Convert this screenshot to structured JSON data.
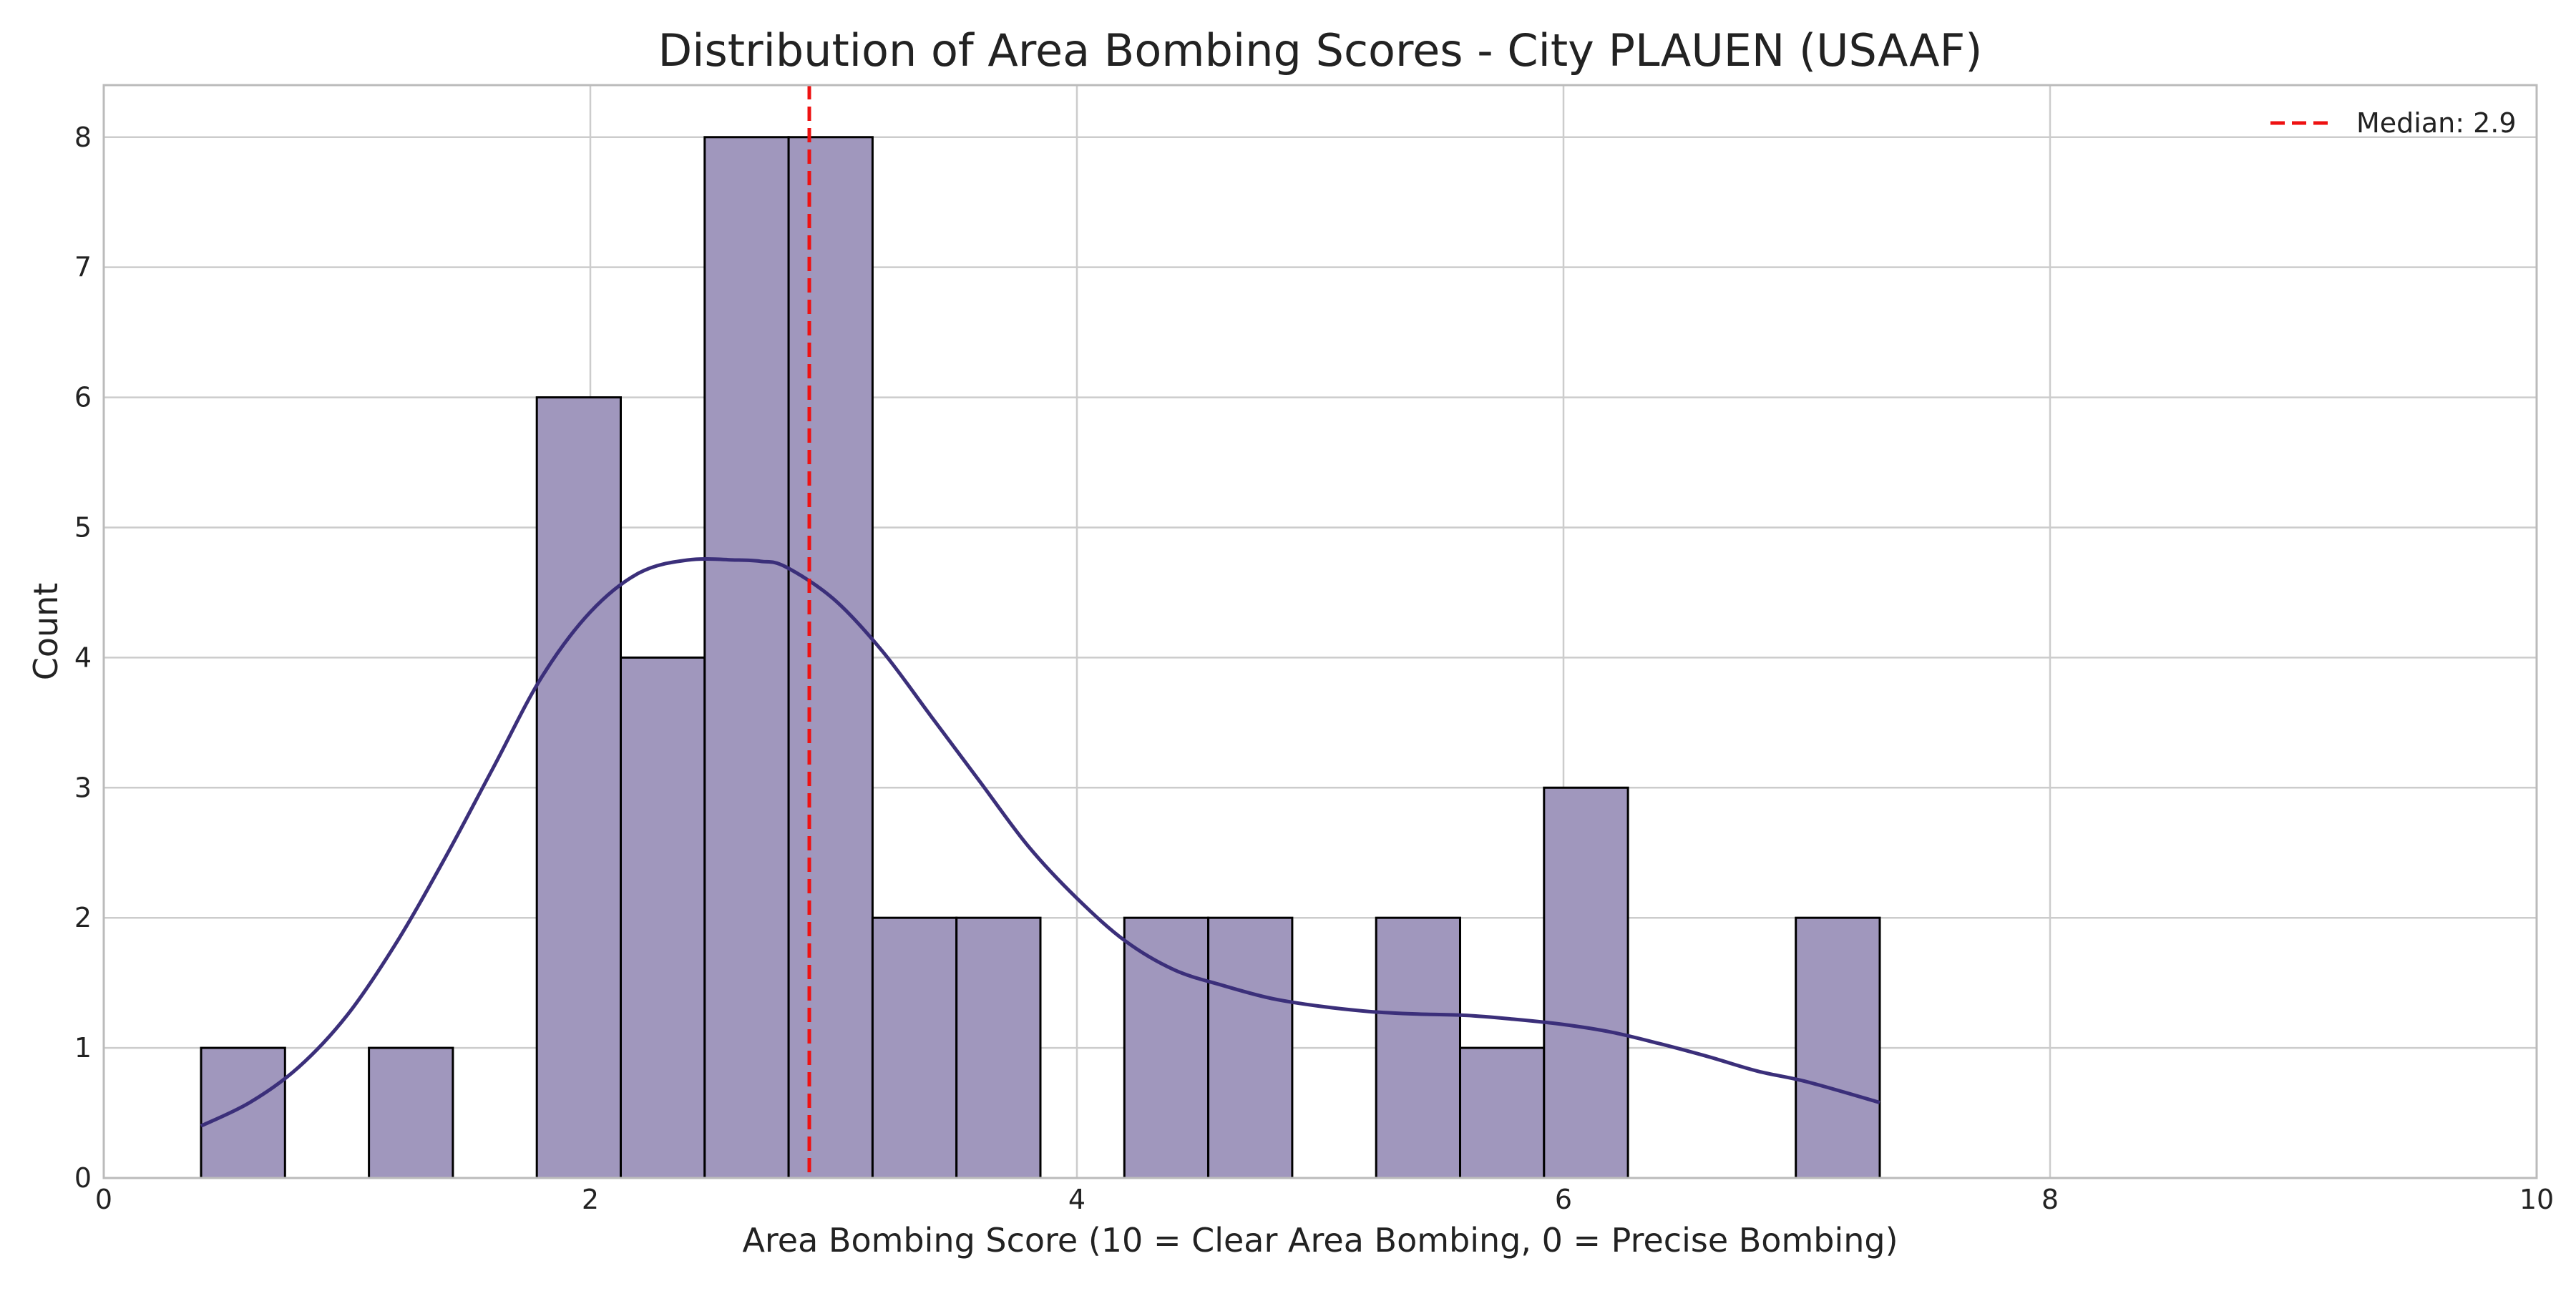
{
  "chart_data": {
    "type": "bar",
    "title": "Distribution of Area Bombing Scores - City PLAUEN (USAAF)",
    "xlabel": "Area Bombing Score (10 = Clear Area Bombing, 0 = Precise Bombing)",
    "ylabel": "Count",
    "xlim": [
      0,
      10
    ],
    "ylim": [
      0,
      8.4
    ],
    "xticks": [
      0,
      2,
      4,
      6,
      8,
      10
    ],
    "yticks": [
      0,
      1,
      2,
      3,
      4,
      5,
      6,
      7,
      8
    ],
    "grid": true,
    "legend_position": "top-right",
    "bins": [
      {
        "x0": 0.4,
        "x1": 0.745,
        "count": 1
      },
      {
        "x0": 0.745,
        "x1": 1.09,
        "count": 0
      },
      {
        "x0": 1.09,
        "x1": 1.435,
        "count": 1
      },
      {
        "x0": 1.435,
        "x1": 1.78,
        "count": 0
      },
      {
        "x0": 1.78,
        "x1": 2.125,
        "count": 6
      },
      {
        "x0": 2.125,
        "x1": 2.47,
        "count": 4
      },
      {
        "x0": 2.47,
        "x1": 2.815,
        "count": 8
      },
      {
        "x0": 2.815,
        "x1": 3.16,
        "count": 8
      },
      {
        "x0": 3.16,
        "x1": 3.505,
        "count": 2
      },
      {
        "x0": 3.505,
        "x1": 3.85,
        "count": 2
      },
      {
        "x0": 3.85,
        "x1": 4.195,
        "count": 0
      },
      {
        "x0": 4.195,
        "x1": 4.54,
        "count": 2
      },
      {
        "x0": 4.54,
        "x1": 4.885,
        "count": 2
      },
      {
        "x0": 4.885,
        "x1": 5.23,
        "count": 0
      },
      {
        "x0": 5.23,
        "x1": 5.575,
        "count": 2
      },
      {
        "x0": 5.575,
        "x1": 5.92,
        "count": 1
      },
      {
        "x0": 5.92,
        "x1": 6.265,
        "count": 3
      },
      {
        "x0": 6.265,
        "x1": 6.61,
        "count": 0
      },
      {
        "x0": 6.61,
        "x1": 6.955,
        "count": 0
      },
      {
        "x0": 6.955,
        "x1": 7.3,
        "count": 2
      }
    ],
    "kde": {
      "x": [
        0.4,
        0.6,
        0.8,
        1.0,
        1.2,
        1.4,
        1.6,
        1.8,
        2.0,
        2.2,
        2.4,
        2.6,
        2.7,
        2.8,
        3.0,
        3.2,
        3.4,
        3.6,
        3.8,
        4.0,
        4.2,
        4.4,
        4.6,
        4.8,
        5.0,
        5.2,
        5.4,
        5.6,
        5.8,
        6.0,
        6.2,
        6.4,
        6.6,
        6.8,
        7.0,
        7.3
      ],
      "y": [
        0.4,
        0.58,
        0.85,
        1.25,
        1.8,
        2.45,
        3.15,
        3.85,
        4.35,
        4.65,
        4.75,
        4.75,
        4.74,
        4.7,
        4.45,
        4.05,
        3.55,
        3.05,
        2.55,
        2.15,
        1.82,
        1.6,
        1.48,
        1.38,
        1.32,
        1.28,
        1.26,
        1.25,
        1.22,
        1.18,
        1.12,
        1.03,
        0.93,
        0.82,
        0.74,
        0.58
      ]
    },
    "median": {
      "value": 2.9,
      "label": "Median: 2.9"
    },
    "colors": {
      "bar_fill": "#a097bd",
      "bar_edge": "#000000",
      "kde_line": "#3b2f7a",
      "median_line": "#ee1111",
      "grid": "#cccccc",
      "axes": "#bbbbbb"
    }
  }
}
